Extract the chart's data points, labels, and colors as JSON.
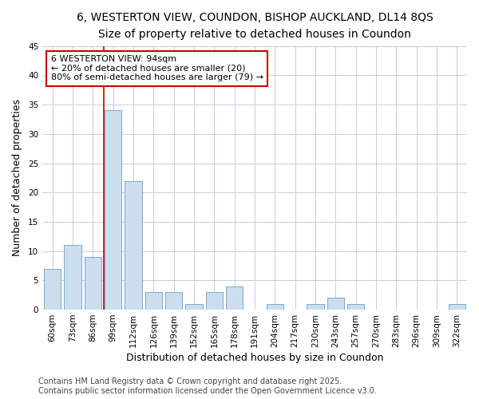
{
  "title": "6, WESTERTON VIEW, COUNDON, BISHOP AUCKLAND, DL14 8QS",
  "subtitle": "Size of property relative to detached houses in Coundon",
  "xlabel": "Distribution of detached houses by size in Coundon",
  "ylabel": "Number of detached properties",
  "categories": [
    "60sqm",
    "73sqm",
    "86sqm",
    "99sqm",
    "112sqm",
    "126sqm",
    "139sqm",
    "152sqm",
    "165sqm",
    "178sqm",
    "191sqm",
    "204sqm",
    "217sqm",
    "230sqm",
    "243sqm",
    "257sqm",
    "270sqm",
    "283sqm",
    "296sqm",
    "309sqm",
    "322sqm"
  ],
  "values": [
    7,
    11,
    9,
    34,
    22,
    3,
    3,
    1,
    3,
    4,
    0,
    1,
    0,
    1,
    2,
    1,
    0,
    0,
    0,
    0,
    1
  ],
  "bar_color": "#ccdded",
  "bar_edge_color": "#7aaac8",
  "grid_color": "#ccccdd",
  "background_color": "#ffffff",
  "vline_color": "#cc0000",
  "vline_x_index": 2.55,
  "annotation_text": "6 WESTERTON VIEW: 94sqm\n← 20% of detached houses are smaller (20)\n80% of semi-detached houses are larger (79) →",
  "annotation_box_facecolor": "#ffffff",
  "annotation_box_edgecolor": "#cc0000",
  "ylim": [
    0,
    45
  ],
  "yticks": [
    0,
    5,
    10,
    15,
    20,
    25,
    30,
    35,
    40,
    45
  ],
  "footer": "Contains HM Land Registry data © Crown copyright and database right 2025.\nContains public sector information licensed under the Open Government Licence v3.0.",
  "title_fontsize": 10,
  "subtitle_fontsize": 9,
  "xlabel_fontsize": 9,
  "ylabel_fontsize": 9,
  "tick_fontsize": 7.5,
  "annotation_fontsize": 8,
  "footer_fontsize": 7
}
